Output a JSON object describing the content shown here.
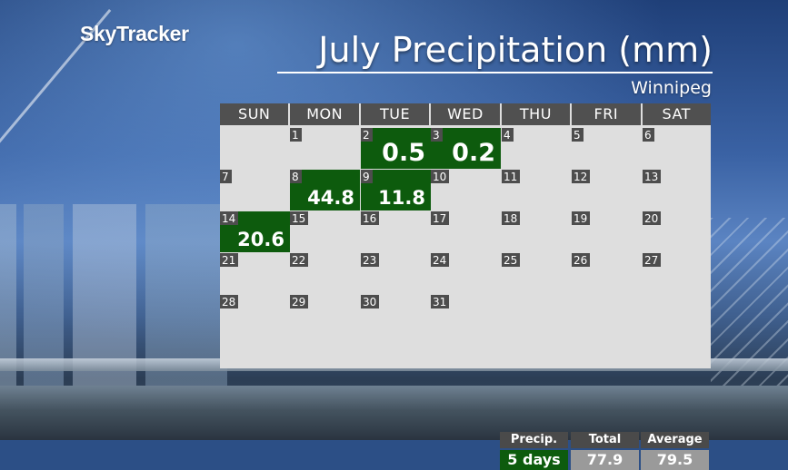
{
  "brand": "SkyTracker",
  "title": "July Precipitation (mm)",
  "location": "Winnipeg",
  "weekdays": [
    "SUN",
    "MON",
    "TUE",
    "WED",
    "THU",
    "FRI",
    "SAT"
  ],
  "days": [
    {
      "date": "1",
      "precip": null
    },
    {
      "date": "2",
      "precip": "0.5"
    },
    {
      "date": "3",
      "precip": "0.2"
    },
    {
      "date": "4",
      "precip": null
    },
    {
      "date": "5",
      "precip": null
    },
    {
      "date": "6",
      "precip": null
    },
    {
      "date": "7",
      "precip": null
    },
    {
      "date": "8",
      "precip": "44.8"
    },
    {
      "date": "9",
      "precip": "11.8"
    },
    {
      "date": "10",
      "precip": null
    },
    {
      "date": "11",
      "precip": null
    },
    {
      "date": "12",
      "precip": null
    },
    {
      "date": "13",
      "precip": null
    },
    {
      "date": "14",
      "precip": "20.6"
    },
    {
      "date": "15",
      "precip": null
    },
    {
      "date": "16",
      "precip": null
    },
    {
      "date": "17",
      "precip": null
    },
    {
      "date": "18",
      "precip": null
    },
    {
      "date": "19",
      "precip": null
    },
    {
      "date": "20",
      "precip": null
    },
    {
      "date": "21",
      "precip": null
    },
    {
      "date": "22",
      "precip": null
    },
    {
      "date": "23",
      "precip": null
    },
    {
      "date": "24",
      "precip": null
    },
    {
      "date": "25",
      "precip": null
    },
    {
      "date": "26",
      "precip": null
    },
    {
      "date": "27",
      "precip": null
    },
    {
      "date": "28",
      "precip": null
    },
    {
      "date": "29",
      "precip": null
    },
    {
      "date": "30",
      "precip": null
    },
    {
      "date": "31",
      "precip": null
    }
  ],
  "summary": {
    "precip_label": "Precip.",
    "precip_value": "5 days",
    "total_label": "Total",
    "total_value": "77.9",
    "average_label": "Average",
    "average_value": "79.5"
  },
  "colors": {
    "precip_cell": "#0d5b0d",
    "grid_background": "#dedede",
    "header_background": "#505050"
  }
}
